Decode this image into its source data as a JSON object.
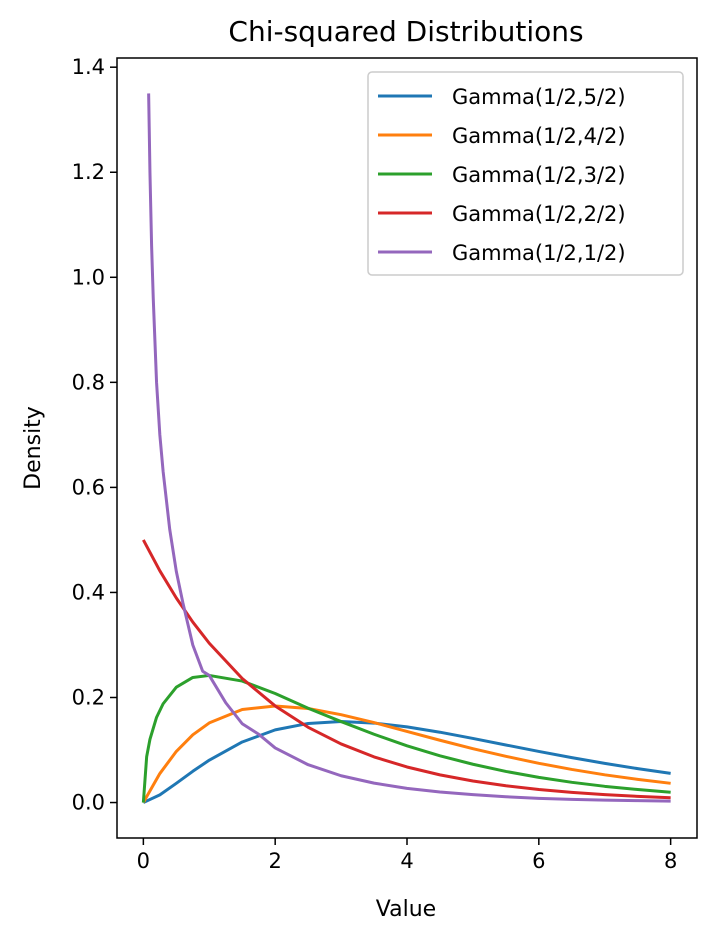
{
  "chart_data": {
    "type": "line",
    "title": "Chi-squared Distributions",
    "xlabel": "Value",
    "ylabel": "Density",
    "xlim": [
      -0.4,
      8.4
    ],
    "ylim": [
      -0.0675,
      1.4175
    ],
    "x_ticks": [
      0,
      2,
      4,
      6,
      8
    ],
    "y_ticks": [
      0.0,
      0.2,
      0.4,
      0.6,
      0.8,
      1.0,
      1.2,
      1.4
    ],
    "x_tick_labels": [
      "0",
      "2",
      "4",
      "6",
      "8"
    ],
    "y_tick_labels": [
      "0.0",
      "0.2",
      "0.4",
      "0.6",
      "0.8",
      "1.0",
      "1.2",
      "1.4"
    ],
    "grid": false,
    "legend_position": "top-right",
    "series": [
      {
        "name": "Gamma(1/2,5/2)",
        "color": "#1f77b4",
        "x": [
          0,
          0.25,
          0.5,
          0.75,
          1,
          1.5,
          2,
          2.5,
          3,
          3.5,
          4,
          4.5,
          5,
          5.5,
          6,
          6.5,
          7,
          7.5,
          8
        ],
        "y": [
          0,
          0.0146,
          0.0366,
          0.0595,
          0.0807,
          0.1153,
          0.1383,
          0.1506,
          0.1542,
          0.1513,
          0.144,
          0.1339,
          0.122,
          0.1096,
          0.0973,
          0.0855,
          0.0746,
          0.0646,
          0.0555
        ]
      },
      {
        "name": "Gamma(1/2,4/2)",
        "color": "#ff7f0e",
        "x": [
          0,
          0.25,
          0.5,
          0.75,
          1,
          1.5,
          2,
          2.5,
          3,
          3.5,
          4,
          4.5,
          5,
          5.5,
          6,
          6.5,
          7,
          7.5,
          8
        ],
        "y": [
          0,
          0.0552,
          0.0974,
          0.1289,
          0.1516,
          0.1771,
          0.1839,
          0.179,
          0.1673,
          0.1522,
          0.1353,
          0.1186,
          0.1026,
          0.088,
          0.0747,
          0.063,
          0.0528,
          0.0441,
          0.0366
        ]
      },
      {
        "name": "Gamma(1/2,3/2)",
        "color": "#2ca02c",
        "x": [
          0,
          0.05,
          0.1,
          0.2,
          0.3,
          0.5,
          0.75,
          1,
          1.5,
          2,
          2.5,
          3,
          3.5,
          4,
          4.5,
          5,
          5.5,
          6,
          6.5,
          7,
          7.5,
          8
        ],
        "y": [
          0,
          0.0873,
          0.1204,
          0.1622,
          0.1881,
          0.2197,
          0.2381,
          0.242,
          0.2313,
          0.2076,
          0.1795,
          0.1542,
          0.13,
          0.108,
          0.0889,
          0.0729,
          0.0592,
          0.0479,
          0.0385,
          0.0309,
          0.0248,
          0.0196
        ]
      },
      {
        "name": "Gamma(1/2,2/2)",
        "color": "#d62728",
        "x": [
          0,
          0.25,
          0.5,
          0.75,
          1,
          1.5,
          2,
          2.5,
          3,
          3.5,
          4,
          4.5,
          5,
          5.5,
          6,
          6.5,
          7,
          7.5,
          8
        ],
        "y": [
          0.5,
          0.4412,
          0.3894,
          0.3436,
          0.3033,
          0.2362,
          0.1839,
          0.1433,
          0.1116,
          0.0869,
          0.0677,
          0.0527,
          0.041,
          0.032,
          0.0249,
          0.0194,
          0.0151,
          0.0118,
          0.0092
        ]
      },
      {
        "name": "Gamma(1/2,1/2)",
        "color": "#9467bd",
        "x": [
          0.08,
          0.1,
          0.125,
          0.15,
          0.2,
          0.25,
          0.3,
          0.4,
          0.5,
          0.6,
          0.75,
          0.9,
          1,
          1.25,
          1.5,
          1.75,
          2,
          2.5,
          3,
          3.5,
          4,
          4.5,
          5,
          5.5,
          6,
          6.5,
          7,
          7.5,
          8
        ],
        "y": [
          1.35,
          1.2,
          1.06,
          0.96,
          0.8,
          0.7,
          0.63,
          0.52,
          0.44,
          0.38,
          0.3,
          0.25,
          0.242,
          0.19,
          0.15,
          0.13,
          0.104,
          0.072,
          0.051,
          0.037,
          0.027,
          0.02,
          0.015,
          0.011,
          0.008,
          0.006,
          0.0047,
          0.0036,
          0.0027
        ]
      }
    ]
  }
}
